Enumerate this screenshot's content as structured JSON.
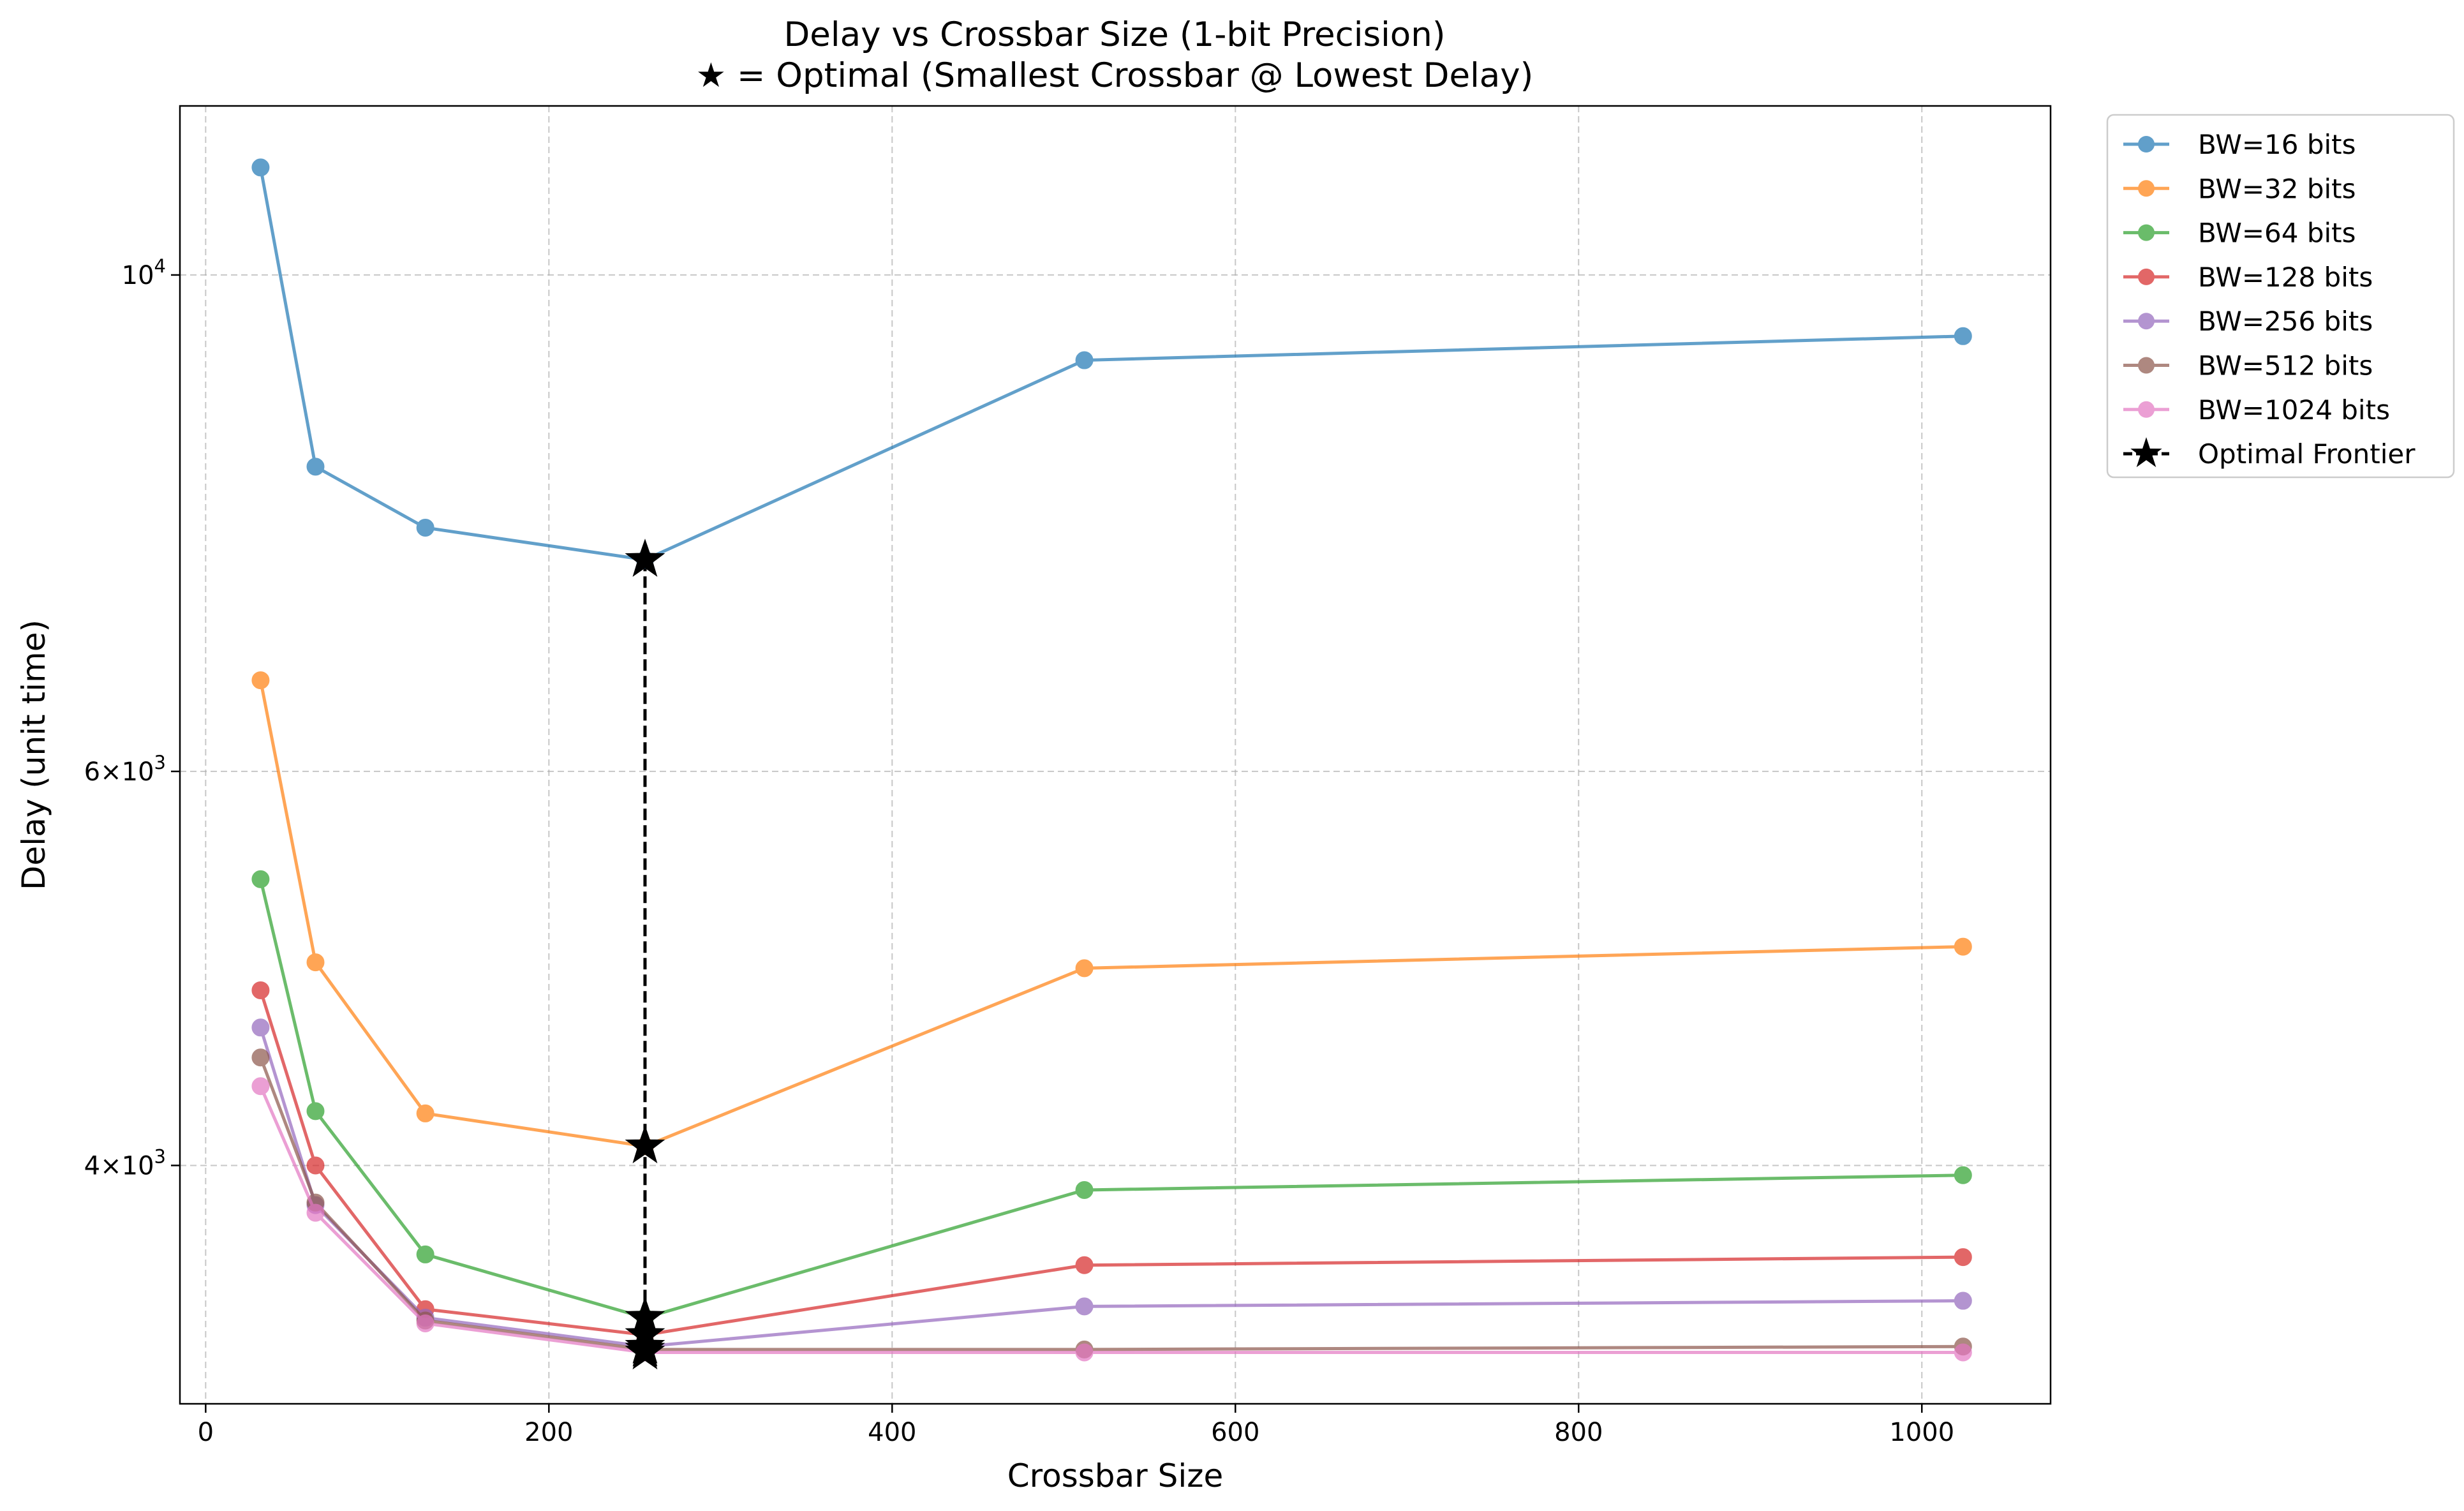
{
  "chart_data": {
    "type": "line",
    "title": "Delay vs Crossbar Size (1-bit Precision)",
    "subtitle": "★ = Optimal (Smallest Crossbar @ Lowest Delay)",
    "xlabel": "Crossbar Size",
    "ylabel": "Delay (unit time)",
    "xlim": [
      -15,
      1075
    ],
    "ylim": [
      3130,
      11900
    ],
    "yscale": "log",
    "grid": true,
    "legend_position": "outside-top-right",
    "x_ticks": [
      {
        "value": 0,
        "label": "0"
      },
      {
        "value": 200,
        "label": "200"
      },
      {
        "value": 400,
        "label": "400"
      },
      {
        "value": 600,
        "label": "600"
      },
      {
        "value": 800,
        "label": "800"
      },
      {
        "value": 1000,
        "label": "1000"
      }
    ],
    "y_ticks": [
      {
        "value": 4000,
        "base": "4",
        "exp": "3"
      },
      {
        "value": 6000,
        "base": "6",
        "exp": "3"
      },
      {
        "value": 10000,
        "base": "",
        "exp": "4"
      }
    ],
    "x": [
      32,
      64,
      128,
      256,
      512,
      1024
    ],
    "series": [
      {
        "name": "BW=16 bits",
        "color": "#1f77b4",
        "values": [
          11170,
          8210,
          7710,
          7460,
          9160,
          9390
        ]
      },
      {
        "name": "BW=32 bits",
        "color": "#ff7f0e",
        "values": [
          6590,
          4930,
          4220,
          4080,
          4900,
          5010
        ]
      },
      {
        "name": "BW=64 bits",
        "color": "#2ca02c",
        "values": [
          5370,
          4230,
          3650,
          3420,
          3900,
          3960
        ]
      },
      {
        "name": "BW=128 bits",
        "color": "#d62728",
        "values": [
          4790,
          4000,
          3450,
          3360,
          3610,
          3640
        ]
      },
      {
        "name": "BW=256 bits",
        "color": "#9467bd",
        "values": [
          4610,
          3840,
          3420,
          3320,
          3460,
          3480
        ]
      },
      {
        "name": "BW=512 bits",
        "color": "#8c564b",
        "values": [
          4470,
          3850,
          3410,
          3310,
          3310,
          3320
        ]
      },
      {
        "name": "BW=1024 bits",
        "color": "#e377c2",
        "values": [
          4340,
          3810,
          3400,
          3300,
          3300,
          3300
        ]
      }
    ],
    "optimal_frontier": {
      "name": "Optimal Frontier",
      "color": "#000000",
      "x": [
        256,
        256,
        256,
        256,
        256,
        256,
        256
      ],
      "values": [
        7460,
        4080,
        3420,
        3360,
        3320,
        3310,
        3300
      ]
    }
  }
}
